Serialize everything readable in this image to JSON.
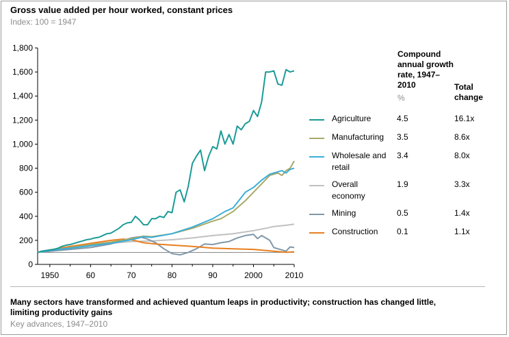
{
  "header": {
    "title": "Gross value added per hour worked, constant prices",
    "subtitle": "Index: 100 = 1947"
  },
  "table": {
    "rate_header": "Compound annual growth rate, 1947–2010",
    "rate_unit": "%",
    "total_header": "Total change"
  },
  "footer": {
    "title": "Many sectors have transformed and achieved quantum leaps in productivity; construction has changed little, limiting productivity gains",
    "subtitle": "Key advances, 1947–2010"
  },
  "chart_data": {
    "type": "line",
    "title": "Gross value added per hour worked, constant prices",
    "subtitle": "Index: 100 = 1947",
    "xlim": [
      1947,
      2010
    ],
    "ylim": [
      0,
      1800
    ],
    "x_ticks": [
      "1950",
      "60",
      "70",
      "80",
      "90",
      "2000",
      "2010"
    ],
    "x_tick_values": [
      1950,
      1960,
      1970,
      1980,
      1990,
      2000,
      2010
    ],
    "y_ticks": [
      "0",
      "200",
      "400",
      "600",
      "800",
      "1,000",
      "1,200",
      "1,400",
      "1,600",
      "1,800"
    ],
    "y_tick_values": [
      0,
      200,
      400,
      600,
      800,
      1000,
      1200,
      1400,
      1600,
      1800
    ],
    "grid": false,
    "legend_position": "right",
    "series": [
      {
        "name": "Agriculture",
        "color": "#1a9a96",
        "rate": "4.5",
        "total": "16.1x",
        "points": [
          [
            1947,
            100
          ],
          [
            1948,
            110
          ],
          [
            1949,
            115
          ],
          [
            1950,
            120
          ],
          [
            1951,
            125
          ],
          [
            1952,
            135
          ],
          [
            1953,
            150
          ],
          [
            1954,
            160
          ],
          [
            1955,
            165
          ],
          [
            1956,
            175
          ],
          [
            1957,
            185
          ],
          [
            1958,
            195
          ],
          [
            1959,
            205
          ],
          [
            1960,
            210
          ],
          [
            1961,
            220
          ],
          [
            1962,
            225
          ],
          [
            1963,
            240
          ],
          [
            1964,
            255
          ],
          [
            1965,
            260
          ],
          [
            1966,
            280
          ],
          [
            1967,
            300
          ],
          [
            1968,
            330
          ],
          [
            1969,
            345
          ],
          [
            1970,
            350
          ],
          [
            1971,
            400
          ],
          [
            1972,
            370
          ],
          [
            1973,
            330
          ],
          [
            1974,
            330
          ],
          [
            1975,
            380
          ],
          [
            1976,
            380
          ],
          [
            1977,
            400
          ],
          [
            1978,
            390
          ],
          [
            1979,
            440
          ],
          [
            1980,
            430
          ],
          [
            1981,
            600
          ],
          [
            1982,
            620
          ],
          [
            1983,
            520
          ],
          [
            1984,
            650
          ],
          [
            1985,
            840
          ],
          [
            1986,
            900
          ],
          [
            1987,
            950
          ],
          [
            1988,
            780
          ],
          [
            1989,
            900
          ],
          [
            1990,
            980
          ],
          [
            1991,
            960
          ],
          [
            1992,
            1110
          ],
          [
            1993,
            1000
          ],
          [
            1994,
            1080
          ],
          [
            1995,
            1000
          ],
          [
            1996,
            1150
          ],
          [
            1997,
            1120
          ],
          [
            1998,
            1170
          ],
          [
            1999,
            1190
          ],
          [
            2000,
            1280
          ],
          [
            2001,
            1230
          ],
          [
            2002,
            1350
          ],
          [
            2003,
            1600
          ],
          [
            2004,
            1600
          ],
          [
            2005,
            1610
          ],
          [
            2006,
            1500
          ],
          [
            2007,
            1490
          ],
          [
            2008,
            1620
          ],
          [
            2009,
            1600
          ],
          [
            2010,
            1610
          ]
        ]
      },
      {
        "name": "Manufacturing",
        "color": "#a8a868",
        "rate": "3.5",
        "total": "8.6x",
        "points": [
          [
            1947,
            100
          ],
          [
            1950,
            115
          ],
          [
            1955,
            140
          ],
          [
            1960,
            165
          ],
          [
            1965,
            185
          ],
          [
            1970,
            215
          ],
          [
            1973,
            235
          ],
          [
            1975,
            230
          ],
          [
            1980,
            255
          ],
          [
            1985,
            300
          ],
          [
            1990,
            360
          ],
          [
            1992,
            380
          ],
          [
            1995,
            440
          ],
          [
            1998,
            530
          ],
          [
            2000,
            600
          ],
          [
            2002,
            670
          ],
          [
            2004,
            740
          ],
          [
            2006,
            760
          ],
          [
            2007,
            740
          ],
          [
            2008,
            780
          ],
          [
            2009,
            800
          ],
          [
            2010,
            860
          ]
        ]
      },
      {
        "name": "Wholesale and retail",
        "color": "#3aaed8",
        "rate": "3.4",
        "total": "8.0x",
        "points": [
          [
            1947,
            100
          ],
          [
            1950,
            115
          ],
          [
            1955,
            135
          ],
          [
            1960,
            155
          ],
          [
            1965,
            175
          ],
          [
            1970,
            205
          ],
          [
            1973,
            230
          ],
          [
            1975,
            225
          ],
          [
            1980,
            255
          ],
          [
            1985,
            310
          ],
          [
            1990,
            380
          ],
          [
            1993,
            440
          ],
          [
            1995,
            470
          ],
          [
            1998,
            600
          ],
          [
            2000,
            640
          ],
          [
            2002,
            700
          ],
          [
            2004,
            750
          ],
          [
            2006,
            770
          ],
          [
            2007,
            780
          ],
          [
            2008,
            760
          ],
          [
            2009,
            790
          ],
          [
            2010,
            800
          ]
        ]
      },
      {
        "name": "Overall economy",
        "color": "#c0c0c0",
        "rate": "1.9",
        "total": "3.3x",
        "points": [
          [
            1947,
            100
          ],
          [
            1950,
            115
          ],
          [
            1955,
            135
          ],
          [
            1960,
            155
          ],
          [
            1965,
            175
          ],
          [
            1970,
            190
          ],
          [
            1975,
            195
          ],
          [
            1980,
            205
          ],
          [
            1985,
            220
          ],
          [
            1990,
            240
          ],
          [
            1995,
            255
          ],
          [
            2000,
            280
          ],
          [
            2003,
            300
          ],
          [
            2005,
            315
          ],
          [
            2008,
            325
          ],
          [
            2010,
            335
          ]
        ]
      },
      {
        "name": "Mining",
        "color": "#7f97a8",
        "rate": "0.5",
        "total": "1.4x",
        "points": [
          [
            1947,
            100
          ],
          [
            1950,
            110
          ],
          [
            1955,
            125
          ],
          [
            1960,
            140
          ],
          [
            1965,
            170
          ],
          [
            1968,
            200
          ],
          [
            1970,
            220
          ],
          [
            1972,
            230
          ],
          [
            1974,
            210
          ],
          [
            1976,
            180
          ],
          [
            1978,
            130
          ],
          [
            1980,
            90
          ],
          [
            1982,
            80
          ],
          [
            1984,
            100
          ],
          [
            1986,
            130
          ],
          [
            1988,
            170
          ],
          [
            1990,
            165
          ],
          [
            1992,
            180
          ],
          [
            1994,
            190
          ],
          [
            1996,
            220
          ],
          [
            1998,
            240
          ],
          [
            2000,
            250
          ],
          [
            2001,
            215
          ],
          [
            2002,
            240
          ],
          [
            2004,
            200
          ],
          [
            2005,
            140
          ],
          [
            2006,
            130
          ],
          [
            2007,
            120
          ],
          [
            2008,
            110
          ],
          [
            2009,
            145
          ],
          [
            2010,
            140
          ]
        ]
      },
      {
        "name": "Construction",
        "color": "#e87e1e",
        "rate": "0.1",
        "total": "1.1x",
        "points": [
          [
            1947,
            100
          ],
          [
            1950,
            120
          ],
          [
            1955,
            150
          ],
          [
            1960,
            175
          ],
          [
            1965,
            200
          ],
          [
            1968,
            210
          ],
          [
            1970,
            205
          ],
          [
            1973,
            180
          ],
          [
            1976,
            170
          ],
          [
            1980,
            160
          ],
          [
            1985,
            150
          ],
          [
            1990,
            135
          ],
          [
            1995,
            130
          ],
          [
            2000,
            125
          ],
          [
            2005,
            110
          ],
          [
            2008,
            100
          ],
          [
            2010,
            105
          ]
        ]
      }
    ]
  }
}
